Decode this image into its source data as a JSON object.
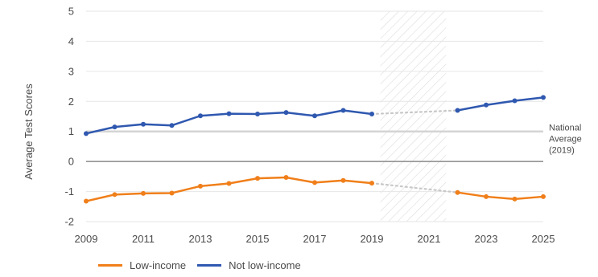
{
  "chart_data": {
    "type": "line",
    "ylabel": "Average Test Scores",
    "xlabel": "",
    "xlim": [
      2009,
      2025
    ],
    "ylim": [
      -2,
      5
    ],
    "x_ticks": [
      "2009",
      "2011",
      "2013",
      "2015",
      "2017",
      "2019",
      "2021",
      "2023",
      "2025"
    ],
    "y_ticks": [
      "-2",
      "-1",
      "0",
      "1",
      "2",
      "3",
      "4",
      "5"
    ],
    "grid": true,
    "shaded_span": [
      2019.3,
      2021.6
    ],
    "reference_line": {
      "y": 1,
      "label": [
        "National",
        "Average",
        "(2019)"
      ]
    },
    "zero_line": true,
    "legend_position": "bottom-left",
    "series": [
      {
        "name": "Low-income",
        "color": "#f07f1a",
        "x": [
          2009,
          2010,
          2011,
          2012,
          2013,
          2014,
          2015,
          2016,
          2017,
          2018,
          2019,
          2022,
          2023,
          2024,
          2025
        ],
        "values": [
          -1.32,
          -1.1,
          -1.06,
          -1.05,
          -0.82,
          -0.73,
          -0.56,
          -0.53,
          -0.7,
          -0.63,
          -0.72,
          -1.03,
          -1.17,
          -1.25,
          -1.17
        ],
        "gap": [
          2019,
          2022
        ]
      },
      {
        "name": "Not low-income",
        "color": "#2f58b0",
        "x": [
          2009,
          2010,
          2011,
          2012,
          2013,
          2014,
          2015,
          2016,
          2017,
          2018,
          2019,
          2022,
          2023,
          2024,
          2025
        ],
        "values": [
          0.93,
          1.15,
          1.24,
          1.2,
          1.52,
          1.59,
          1.58,
          1.63,
          1.52,
          1.7,
          1.58,
          1.7,
          1.88,
          2.02,
          2.13
        ],
        "gap": [
          2019,
          2022
        ]
      }
    ]
  }
}
